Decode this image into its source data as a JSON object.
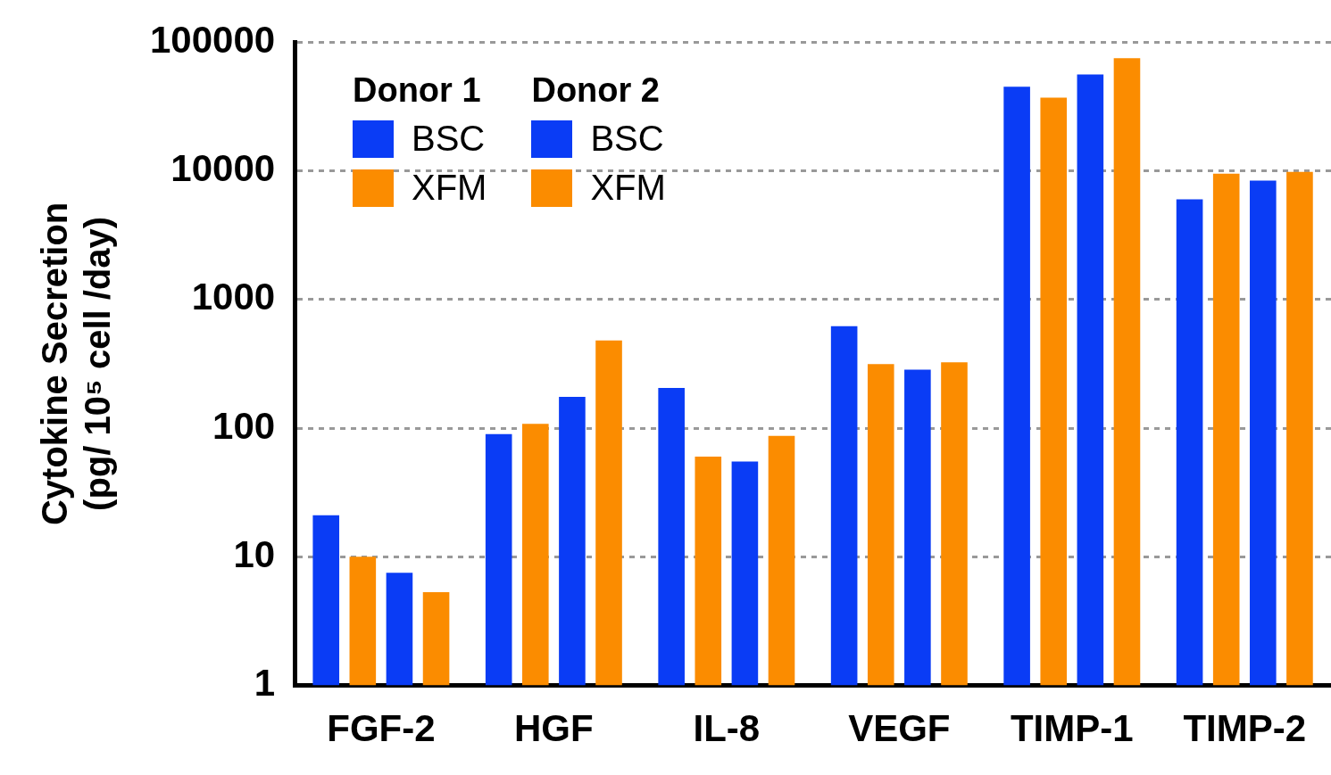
{
  "chart_data": {
    "type": "bar",
    "ylabel": "Cytokine Secretion\n(pg/ 10⁵ cell /day)",
    "categories": [
      "FGF-2",
      "HGF",
      "IL-8",
      "VEGF",
      "TIMP-1",
      "TIMP-2"
    ],
    "series": [
      {
        "name": "BSC",
        "color": "#0a3cf5",
        "values": [
          21,
          90,
          205,
          620,
          45000,
          6000
        ]
      },
      {
        "name": "XFM",
        "color": "#fb8c00",
        "values": [
          10,
          108,
          60,
          315,
          37000,
          9500
        ]
      },
      {
        "name": "BSC",
        "color": "#0a3cf5",
        "values": [
          7.5,
          175,
          55,
          285,
          56000,
          8400
        ]
      },
      {
        "name": "XFM",
        "color": "#fb8c00",
        "values": [
          5.3,
          480,
          87,
          325,
          75000,
          9800
        ]
      }
    ],
    "annotations": [
      "Donor 1",
      "Donor 2"
    ],
    "log": "y",
    "ylim": [
      1,
      100000
    ],
    "yticks": [
      1,
      10,
      100,
      1000,
      10000,
      100000
    ],
    "grid": "y",
    "legend": "top left"
  }
}
